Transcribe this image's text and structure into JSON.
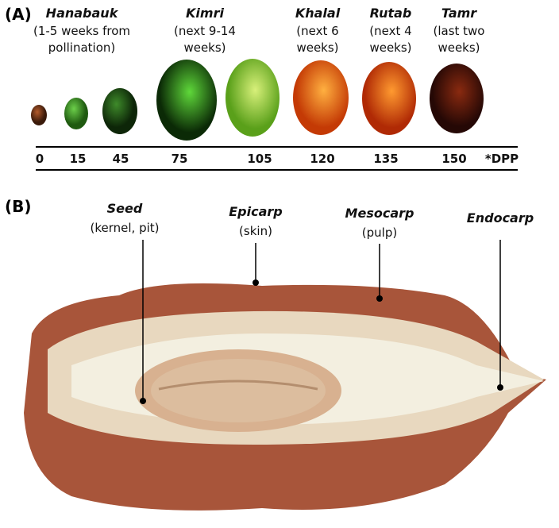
{
  "panel_a": {
    "label": "(A)",
    "stages": [
      {
        "name": "Hanabauk",
        "description": "(1-5 weeks from pollination)"
      },
      {
        "name": "Kimri",
        "description": "(next 9-14 weeks)"
      },
      {
        "name": "Khalal",
        "description": "(next 6 weeks)"
      },
      {
        "name": "Rutab",
        "description": "(next 4 weeks)"
      },
      {
        "name": "Tamr",
        "description": "(last two weeks)"
      }
    ],
    "dpp": [
      "0",
      "15",
      "45",
      "75",
      "105",
      "120",
      "135",
      "150"
    ],
    "dpp_unit": "*DPP"
  },
  "panel_b": {
    "label": "(B)",
    "parts": [
      {
        "name": "Seed",
        "description": "(kernel, pit)"
      },
      {
        "name": "Epicarp",
        "description": "(skin)"
      },
      {
        "name": "Mesocarp",
        "description": "(pulp)"
      },
      {
        "name": "Endocarp"
      }
    ]
  }
}
